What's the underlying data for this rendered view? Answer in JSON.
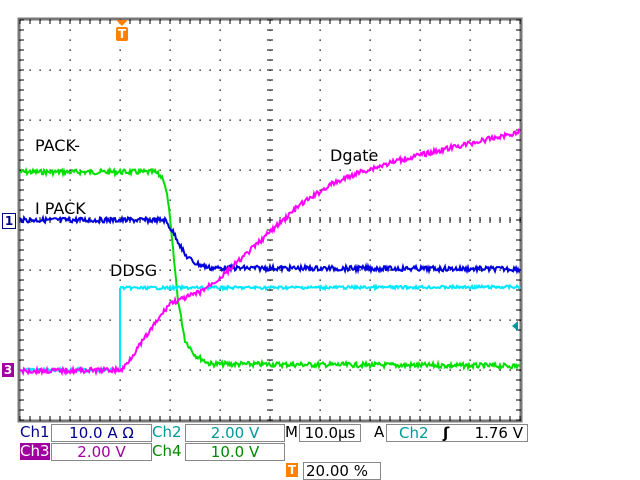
{
  "chart_data": {
    "type": "line",
    "xlabel": "",
    "ylabel": "",
    "x_unit": "µs",
    "y_unit": "div",
    "xlim": [
      -20,
      80
    ],
    "ylim": [
      -4,
      4
    ],
    "grid": true,
    "series": [
      {
        "name": "PACK-",
        "color": "#00e000",
        "x": [
          -20,
          7,
          8.6,
          9.6,
          10.4,
          11.6,
          13,
          15,
          18,
          80
        ],
        "y": [
          0.96,
          0.96,
          0.84,
          0.4,
          -0.4,
          -1.6,
          -2.4,
          -2.7,
          -2.88,
          -2.92
        ]
      },
      {
        "name": "I PACK",
        "color": "#0000dd",
        "x": [
          -20,
          9,
          11,
          13,
          15,
          18,
          80
        ],
        "y": [
          0,
          0,
          -0.3,
          -0.7,
          -0.86,
          -0.96,
          -0.98
        ]
      },
      {
        "name": "DDSG",
        "color": "#00e8ff",
        "x": [
          -20,
          0,
          0,
          80
        ],
        "y": [
          -3,
          -3,
          -1.36,
          -1.34
        ]
      },
      {
        "name": "Dgate",
        "color": "#ff00ff",
        "x": [
          -20,
          0.4,
          10,
          12,
          16,
          20,
          24,
          30,
          36,
          42,
          48,
          56,
          66,
          80
        ],
        "y": [
          -3.02,
          -3.0,
          -1.66,
          -1.6,
          -1.44,
          -1.16,
          -0.8,
          -0.24,
          0.3,
          0.7,
          0.96,
          1.2,
          1.44,
          1.76
        ]
      }
    ]
  },
  "markers": {
    "ch1": "1",
    "ch3": "3",
    "trigger": "T"
  },
  "status": {
    "ch1_label": "Ch1",
    "ch1_scale": "10.0 A Ω",
    "ch2_label": "Ch2",
    "ch2_scale": "2.00 V",
    "timebase_label": "M",
    "timebase": "10.0µs",
    "trigger_label": "A",
    "trigger_source": "Ch2",
    "trigger_slope": "ʃ",
    "trigger_level": "1.76 V",
    "ch3_label": "Ch3",
    "ch3_scale": "2.00 V",
    "ch4_label": "Ch4",
    "ch4_scale": "10.0 V",
    "trigger_position": "20.00 %"
  },
  "colors": {
    "ch1": "#00008b",
    "ch2": "#009999",
    "ch3": "#a000a0",
    "ch4": "#008800",
    "trigger": "#ff7f00"
  }
}
